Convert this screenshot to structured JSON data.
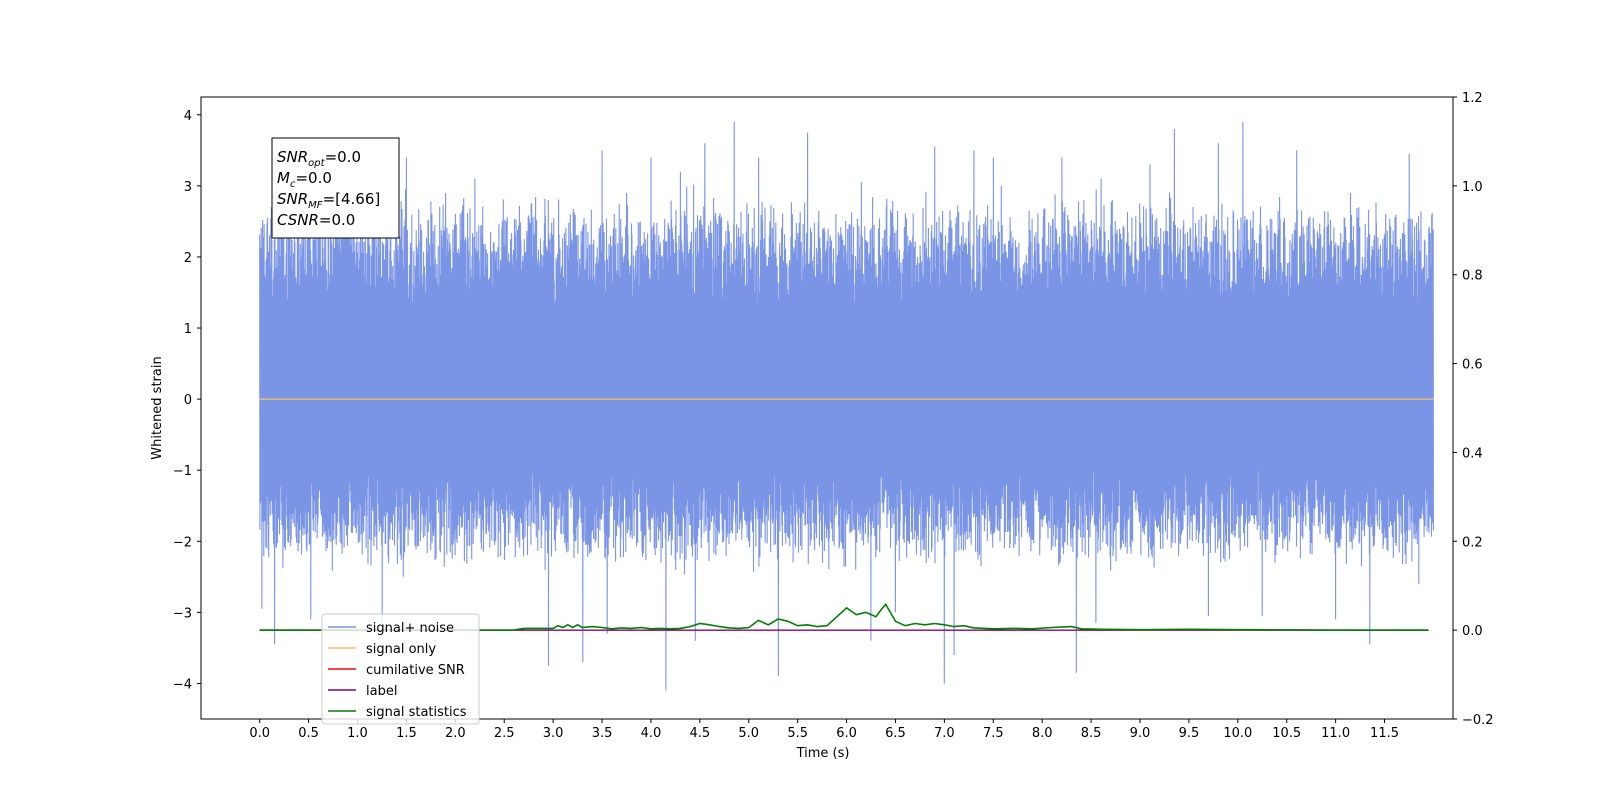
{
  "chart_data": {
    "type": "line",
    "title": "",
    "xlabel": "Time (s)",
    "ylabel": "Whitened strain",
    "xlim": [
      -0.6,
      12.2
    ],
    "ylim": [
      -4.5,
      4.25
    ],
    "y2lim": [
      -0.2,
      1.2
    ],
    "grid": false,
    "x_ticks": [
      "0.0",
      "0.5",
      "1.0",
      "1.5",
      "2.0",
      "2.5",
      "3.0",
      "3.5",
      "4.0",
      "4.5",
      "5.0",
      "5.5",
      "6.0",
      "6.5",
      "7.0",
      "7.5",
      "8.0",
      "8.5",
      "9.0",
      "9.5",
      "10.0",
      "10.5",
      "11.0",
      "11.5"
    ],
    "y_ticks": [
      "−4",
      "−3",
      "−2",
      "−1",
      "0",
      "1",
      "2",
      "3",
      "4"
    ],
    "y2_ticks": [
      "−0.2",
      "0.0",
      "0.2",
      "0.4",
      "0.6",
      "0.8",
      "1.0",
      "1.2"
    ],
    "annotation": {
      "lines": [
        {
          "base": "SNR",
          "sub": "opt",
          "rest": "=0.0"
        },
        {
          "base": "M",
          "sub": "c",
          "rest": "=0.0"
        },
        {
          "base": "SNR",
          "sub": "MF",
          "rest": "=[4.66]"
        },
        {
          "base": "CSNR",
          "sub": "",
          "rest": "=0.0"
        }
      ]
    },
    "legend_position": "lower-left",
    "series": [
      {
        "name": "signal+ noise",
        "axis": "left",
        "color": "#7a94e6",
        "x_range": [
          0.0,
          12.0
        ],
        "envelope_typical": [
          -2.1,
          2.6
        ],
        "peaks": [
          [
            0.12,
            2.7
          ],
          [
            0.45,
            3.0
          ],
          [
            1.5,
            3.4
          ],
          [
            1.9,
            2.9
          ],
          [
            2.2,
            3.1
          ],
          [
            3.5,
            3.5
          ],
          [
            3.75,
            2.9
          ],
          [
            4.0,
            3.4
          ],
          [
            4.3,
            3.2
          ],
          [
            4.55,
            3.6
          ],
          [
            4.85,
            3.9
          ],
          [
            5.1,
            3.4
          ],
          [
            5.6,
            3.75
          ],
          [
            6.15,
            3.05
          ],
          [
            6.9,
            3.55
          ],
          [
            7.3,
            3.5
          ],
          [
            7.5,
            3.4
          ],
          [
            8.2,
            3.4
          ],
          [
            8.6,
            3.1
          ],
          [
            9.1,
            3.3
          ],
          [
            9.35,
            3.8
          ],
          [
            9.8,
            3.6
          ],
          [
            10.05,
            3.9
          ],
          [
            10.6,
            3.5
          ],
          [
            11.15,
            2.9
          ],
          [
            11.75,
            3.45
          ],
          [
            11.95,
            2.4
          ]
        ],
        "troughs": [
          [
            0.02,
            -2.95
          ],
          [
            0.15,
            -3.45
          ],
          [
            0.52,
            -3.1
          ],
          [
            1.25,
            -3.2
          ],
          [
            2.95,
            -3.75
          ],
          [
            3.3,
            -3.7
          ],
          [
            3.55,
            -3.3
          ],
          [
            4.15,
            -4.1
          ],
          [
            4.45,
            -3.4
          ],
          [
            5.3,
            -3.9
          ],
          [
            6.25,
            -3.4
          ],
          [
            6.5,
            -3.0
          ],
          [
            7.0,
            -4.0
          ],
          [
            7.1,
            -3.6
          ],
          [
            8.35,
            -3.85
          ],
          [
            8.55,
            -3.15
          ],
          [
            9.7,
            -3.05
          ],
          [
            10.25,
            -3.05
          ],
          [
            11.0,
            -3.1
          ],
          [
            11.35,
            -3.45
          ],
          [
            11.85,
            -2.6
          ]
        ]
      },
      {
        "name": "signal only",
        "axis": "left",
        "color": "#ffbf60",
        "x": [
          0.0,
          12.0
        ],
        "y": [
          0.0,
          0.0
        ]
      },
      {
        "name": "cumilative SNR",
        "axis": "right",
        "color": "#ff0000",
        "x": [
          0.0,
          11.95
        ],
        "y": [
          0.0,
          0.0
        ]
      },
      {
        "name": "label",
        "axis": "right",
        "color": "#800080",
        "x": [
          0.0,
          11.95
        ],
        "y": [
          0.0,
          0.0
        ]
      },
      {
        "name": "signal statistics",
        "axis": "right",
        "color": "#008000",
        "x": [
          0.0,
          2.6,
          2.7,
          2.9,
          3.0,
          3.05,
          3.1,
          3.15,
          3.2,
          3.25,
          3.3,
          3.4,
          3.5,
          3.6,
          3.7,
          3.8,
          3.9,
          4.0,
          4.1,
          4.2,
          4.3,
          4.4,
          4.5,
          4.6,
          4.7,
          4.8,
          4.9,
          5.0,
          5.1,
          5.2,
          5.3,
          5.4,
          5.5,
          5.6,
          5.7,
          5.8,
          5.9,
          6.0,
          6.1,
          6.2,
          6.3,
          6.35,
          6.4,
          6.5,
          6.6,
          6.7,
          6.8,
          6.9,
          7.0,
          7.1,
          7.2,
          7.3,
          7.5,
          7.7,
          7.9,
          8.1,
          8.3,
          8.4,
          8.6,
          9.0,
          9.5,
          10.0,
          11.0,
          11.95
        ],
        "y": [
          0.0,
          0.0,
          0.004,
          0.004,
          0.004,
          0.01,
          0.006,
          0.012,
          0.006,
          0.012,
          0.006,
          0.008,
          0.006,
          0.003,
          0.005,
          0.004,
          0.006,
          0.003,
          0.004,
          0.003,
          0.004,
          0.008,
          0.015,
          0.012,
          0.008,
          0.005,
          0.004,
          0.006,
          0.022,
          0.012,
          0.025,
          0.02,
          0.01,
          0.012,
          0.008,
          0.01,
          0.03,
          0.05,
          0.035,
          0.04,
          0.03,
          0.045,
          0.058,
          0.02,
          0.01,
          0.015,
          0.012,
          0.015,
          0.012,
          0.008,
          0.01,
          0.005,
          0.003,
          0.004,
          0.003,
          0.006,
          0.008,
          0.003,
          0.002,
          0.001,
          0.002,
          0.001,
          0.0,
          0.0
        ]
      }
    ]
  }
}
